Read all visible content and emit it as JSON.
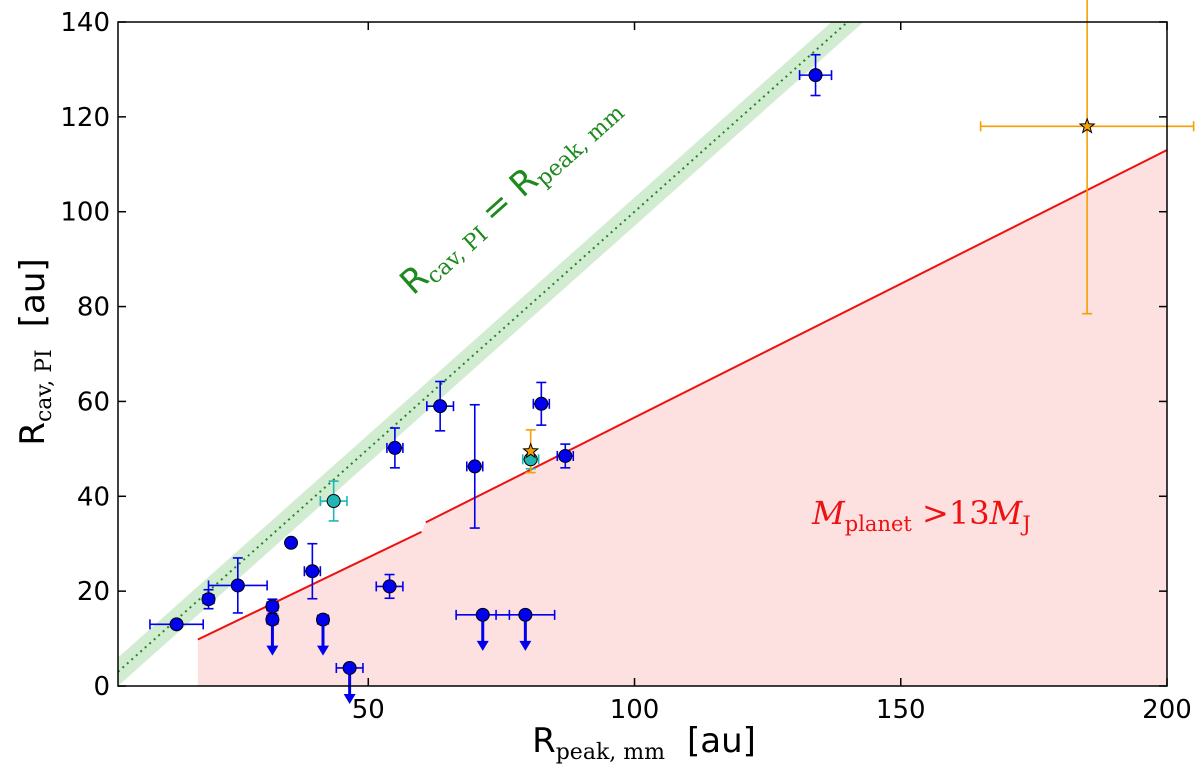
{
  "chart_data": {
    "type": "scatter",
    "xlabel": {
      "main": "R",
      "sub": "peak, mm",
      "unit": "[au]"
    },
    "ylabel": {
      "main": "R",
      "sub": "cav, PI",
      "unit": "[au]"
    },
    "xlim": [
      3,
      200
    ],
    "ylim": [
      0,
      140
    ],
    "xticks": [
      50,
      100,
      150,
      200
    ],
    "yticks": [
      0,
      20,
      40,
      60,
      80,
      100,
      120,
      140
    ],
    "series": [
      {
        "name": "blue points",
        "color": "#0000ee",
        "marker": "circle",
        "points": [
          {
            "x": 14,
            "y": 13,
            "xerr": 5,
            "yerr": 0
          },
          {
            "x": 20,
            "y": 18.3,
            "xerr": 1,
            "yerr": 2
          },
          {
            "x": 25.5,
            "y": 21.2,
            "xerr": 5.5,
            "yerr": 5.8
          },
          {
            "x": 35.5,
            "y": 30.2,
            "xerr": 0,
            "yerr": 0
          },
          {
            "x": 39.5,
            "y": 24.2,
            "xerr": 1.5,
            "yerr": 5.8
          },
          {
            "x": 32,
            "y": 16.8,
            "xerr": 1,
            "yerr": 1.5
          },
          {
            "x": 54,
            "y": 21,
            "xerr": 2.5,
            "yerr": 2.5
          },
          {
            "x": 55,
            "y": 50.2,
            "xerr": 1.5,
            "yerr": 4.2
          },
          {
            "x": 63.5,
            "y": 59,
            "xerr": 2.5,
            "yerr": 5.2
          },
          {
            "x": 70,
            "y": 46.3,
            "xerr": 1.5,
            "yerr": 13
          },
          {
            "x": 82.5,
            "y": 59.5,
            "xerr": 1.5,
            "yerr": 4.5
          },
          {
            "x": 87,
            "y": 48.5,
            "xerr": 1.5,
            "yerr": 2.5
          },
          {
            "x": 134,
            "y": 128.8,
            "xerr": 3,
            "yerr": 4.3
          }
        ]
      },
      {
        "name": "upper limits",
        "color": "#0000ee",
        "marker": "circle-arrow-down",
        "points": [
          {
            "x": 32,
            "y": 14,
            "xerr": 1,
            "yerr": 0
          },
          {
            "x": 41.5,
            "y": 14,
            "xerr": 1,
            "yerr": 0
          },
          {
            "x": 46.5,
            "y": 3.8,
            "xerr": 2.5,
            "yerr": 0
          },
          {
            "x": 71.5,
            "y": 15,
            "xerr": 5,
            "yerr": 0
          },
          {
            "x": 79.5,
            "y": 15,
            "xerr": 5.5,
            "yerr": 0
          }
        ]
      },
      {
        "name": "cyan points",
        "color": "#22b5b5",
        "marker": "circle",
        "points": [
          {
            "x": 43.5,
            "y": 39,
            "xerr": 2.5,
            "yerr": 4.2
          },
          {
            "x": 80.5,
            "y": 47.8,
            "xerr": 1.5,
            "yerr": 2
          }
        ]
      },
      {
        "name": "star points",
        "color": "#f5a000",
        "marker": "star",
        "points": [
          {
            "x": 80.5,
            "y": 49.5,
            "xerr": 0,
            "yerr": 4.5
          },
          {
            "x": 185,
            "y": 118,
            "xerr": 20,
            "yerr": 39.5
          }
        ]
      }
    ],
    "lines": {
      "identity": {
        "x": [
          3,
          200
        ],
        "y": [
          3,
          200
        ],
        "color": "#1e8a1e",
        "band": 3,
        "band_color": "#d2ecd2"
      },
      "mass_limit": {
        "segments": [
          [
            [
              18,
              9.8
            ],
            [
              60,
              32.5
            ]
          ],
          [
            [
              60.8,
              34.5
            ],
            [
              200,
              113
            ]
          ]
        ],
        "color": "#ee1111",
        "fill": "#fde0e0"
      }
    },
    "annotations": {
      "identity_label": {
        "lhs_main": "R",
        "lhs_sub": "cav, PI",
        "eq": " = ",
        "rhs_main": "R",
        "rhs_sub": "peak, mm"
      },
      "mass_label": {
        "main": "M",
        "sub": "planet",
        "op": " >13",
        "rhs_main": "M",
        "rhs_sub": "J"
      }
    }
  }
}
